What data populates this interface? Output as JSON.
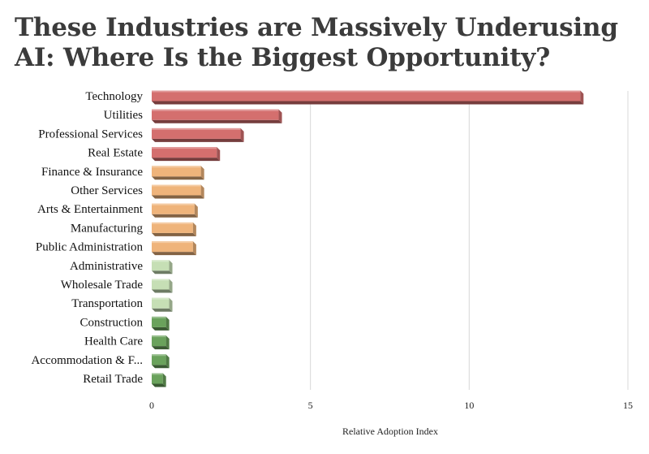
{
  "title": "These Industries are Massively Underusing AI: Where Is the Biggest Opportunity?",
  "chart_data": {
    "type": "bar",
    "orientation": "horizontal",
    "title": "These Industries are Massively Underusing AI: Where Is the Biggest Opportunity?",
    "xlabel": "Relative Adoption Index",
    "ylabel": "",
    "xlim": [
      0,
      15
    ],
    "xticks": [
      0,
      5,
      10,
      15
    ],
    "grid": true,
    "categories": [
      "Technology",
      "Utilities",
      "Professional Services",
      "Real Estate",
      "Finance & Insurance",
      "Other Services",
      "Arts & Entertainment",
      "Manufacturing",
      "Public Administration",
      "Administrative",
      "Wholesale Trade",
      "Transportation",
      "Construction",
      "Health Care",
      "Accommodation & F...",
      "Retail Trade"
    ],
    "values": [
      13.5,
      4.0,
      2.8,
      2.05,
      1.55,
      1.55,
      1.35,
      1.3,
      1.3,
      0.55,
      0.55,
      0.55,
      0.45,
      0.45,
      0.45,
      0.35
    ],
    "bar_colors": [
      "#d46f6e",
      "#d46f6e",
      "#d46f6e",
      "#d46f6e",
      "#efb47b",
      "#efb47b",
      "#efb47b",
      "#efb47b",
      "#efb47b",
      "#c6dfb5",
      "#c6dfb5",
      "#c6dfb5",
      "#6aa25c",
      "#6aa25c",
      "#6aa25c",
      "#6aa25c"
    ]
  }
}
